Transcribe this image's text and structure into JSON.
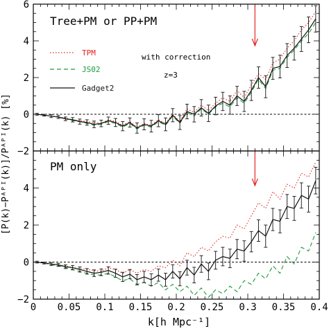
{
  "figure": {
    "xlabel": "k[h Mpc⁻¹]",
    "ylabel": "[P(k)−Pᴬᴾᴵ(k)]/Pᴬᴾᴵ(k) [%]",
    "xticks": [
      "0",
      "0.05",
      "0.1",
      "0.15",
      "0.2",
      "0.25",
      "0.3",
      "0.35",
      "0.4"
    ]
  },
  "chart_data": [
    {
      "type": "line",
      "title": "Tree+PM or PP+PM",
      "annotations": [
        "with correction",
        "z=3"
      ],
      "xlim": [
        0,
        0.4
      ],
      "ylim": [
        -2,
        6
      ],
      "yticks": [
        "−2",
        "0",
        "2",
        "4",
        "6"
      ],
      "reference_line_y": 0,
      "marker_arrow_x": 0.31,
      "legend_position": "left",
      "x": [
        0.005,
        0.015,
        0.025,
        0.035,
        0.045,
        0.055,
        0.065,
        0.075,
        0.085,
        0.095,
        0.105,
        0.115,
        0.125,
        0.135,
        0.145,
        0.155,
        0.165,
        0.175,
        0.185,
        0.195,
        0.205,
        0.215,
        0.225,
        0.235,
        0.245,
        0.255,
        0.265,
        0.275,
        0.285,
        0.295,
        0.305,
        0.315,
        0.325,
        0.335,
        0.345,
        0.355,
        0.365,
        0.375,
        0.385,
        0.395
      ],
      "series": [
        {
          "name": "TPM",
          "color": "#e0241f",
          "style": "dotted",
          "values": [
            0.0,
            -0.05,
            -0.1,
            -0.15,
            -0.2,
            -0.3,
            -0.35,
            -0.4,
            -0.45,
            -0.5,
            -0.3,
            -0.4,
            -0.6,
            -0.4,
            -0.7,
            -0.5,
            -0.6,
            -0.3,
            -0.5,
            0.0,
            -0.4,
            0.3,
            0.1,
            0.5,
            0.2,
            0.6,
            0.9,
            0.7,
            1.3,
            0.9,
            1.6,
            2.2,
            1.9,
            2.8,
            3.0,
            3.6,
            4.0,
            4.6,
            5.0,
            5.6
          ]
        },
        {
          "name": "JS02",
          "color": "#1a9a3a",
          "style": "dashed",
          "values": [
            0.0,
            -0.05,
            -0.1,
            -0.15,
            -0.25,
            -0.35,
            -0.4,
            -0.5,
            -0.6,
            -0.55,
            -0.4,
            -0.5,
            -0.7,
            -0.5,
            -0.8,
            -0.6,
            -0.7,
            -0.4,
            -0.6,
            -0.1,
            -0.5,
            0.1,
            -0.1,
            0.3,
            0.0,
            0.4,
            0.6,
            0.4,
            0.9,
            0.6,
            1.2,
            1.9,
            1.4,
            2.4,
            2.5,
            3.1,
            3.5,
            4.0,
            4.4,
            5.0
          ]
        },
        {
          "name": "Gadget2",
          "color": "#111111",
          "style": "solid",
          "values": [
            0.0,
            -0.05,
            -0.1,
            -0.15,
            -0.25,
            -0.3,
            -0.4,
            -0.45,
            -0.55,
            -0.5,
            -0.35,
            -0.45,
            -0.65,
            -0.45,
            -0.75,
            -0.55,
            -0.65,
            -0.35,
            -0.55,
            -0.05,
            -0.45,
            0.15,
            0.0,
            0.35,
            0.05,
            0.45,
            0.7,
            0.5,
            1.0,
            0.7,
            1.3,
            2.0,
            1.5,
            2.5,
            2.6,
            3.2,
            3.6,
            4.1,
            4.6,
            5.2
          ],
          "errors": [
            0.05,
            0.05,
            0.08,
            0.08,
            0.1,
            0.12,
            0.14,
            0.15,
            0.18,
            0.18,
            0.2,
            0.22,
            0.25,
            0.25,
            0.28,
            0.3,
            0.32,
            0.33,
            0.35,
            0.36,
            0.38,
            0.4,
            0.42,
            0.45,
            0.45,
            0.48,
            0.5,
            0.5,
            0.52,
            0.55,
            0.55,
            0.58,
            0.6,
            0.6,
            0.62,
            0.65,
            0.65,
            0.68,
            0.7,
            0.72
          ]
        }
      ]
    },
    {
      "type": "line",
      "title": "PM only",
      "xlim": [
        0,
        0.4
      ],
      "ylim": [
        -2,
        6
      ],
      "yticks": [
        "−2",
        "0",
        "2",
        "4"
      ],
      "reference_line_y": 0,
      "marker_arrow_x": 0.31,
      "x": [
        0.005,
        0.015,
        0.025,
        0.035,
        0.045,
        0.055,
        0.065,
        0.075,
        0.085,
        0.095,
        0.105,
        0.115,
        0.125,
        0.135,
        0.145,
        0.155,
        0.165,
        0.175,
        0.185,
        0.195,
        0.205,
        0.215,
        0.225,
        0.235,
        0.245,
        0.255,
        0.265,
        0.275,
        0.285,
        0.295,
        0.305,
        0.315,
        0.325,
        0.335,
        0.345,
        0.355,
        0.365,
        0.375,
        0.385,
        0.395
      ],
      "series": [
        {
          "name": "TPM",
          "color": "#e0241f",
          "style": "dotted",
          "values": [
            0.0,
            -0.05,
            -0.1,
            -0.15,
            -0.2,
            -0.3,
            -0.35,
            -0.4,
            -0.45,
            -0.5,
            -0.3,
            -0.4,
            -0.6,
            -0.4,
            -0.6,
            -0.4,
            -0.5,
            -0.2,
            -0.3,
            0.1,
            -0.2,
            0.5,
            0.3,
            0.8,
            0.6,
            1.1,
            1.4,
            1.3,
            2.0,
            1.8,
            2.5,
            3.2,
            2.9,
            3.8,
            3.4,
            4.2,
            4.0,
            4.8,
            4.6,
            5.4
          ]
        },
        {
          "name": "JS02",
          "color": "#1a9a3a",
          "style": "dashed",
          "values": [
            0.0,
            -0.05,
            -0.15,
            -0.2,
            -0.3,
            -0.4,
            -0.5,
            -0.6,
            -0.7,
            -0.7,
            -0.6,
            -0.8,
            -1.0,
            -0.9,
            -1.2,
            -1.1,
            -1.3,
            -1.1,
            -1.5,
            -1.2,
            -1.6,
            -1.3,
            -1.8,
            -1.4,
            -1.9,
            -1.5,
            -1.7,
            -1.3,
            -1.6,
            -1.0,
            -1.2,
            -0.6,
            -0.9,
            -0.2,
            -0.6,
            0.3,
            -0.1,
            0.8,
            0.6,
            1.6
          ]
        },
        {
          "name": "Gadget2",
          "color": "#111111",
          "style": "solid",
          "values": [
            0.0,
            -0.05,
            -0.1,
            -0.15,
            -0.25,
            -0.3,
            -0.4,
            -0.5,
            -0.6,
            -0.55,
            -0.45,
            -0.6,
            -0.8,
            -0.65,
            -0.95,
            -0.8,
            -0.95,
            -0.7,
            -0.95,
            -0.5,
            -0.9,
            -0.3,
            -0.7,
            -0.1,
            -0.5,
            0.1,
            0.3,
            0.2,
            0.7,
            0.6,
            1.1,
            1.7,
            1.4,
            2.3,
            2.2,
            3.0,
            2.9,
            3.6,
            3.4,
            4.4
          ],
          "errors": [
            0.05,
            0.05,
            0.08,
            0.08,
            0.1,
            0.12,
            0.14,
            0.15,
            0.18,
            0.18,
            0.2,
            0.22,
            0.25,
            0.25,
            0.28,
            0.3,
            0.32,
            0.33,
            0.35,
            0.36,
            0.38,
            0.4,
            0.42,
            0.45,
            0.45,
            0.48,
            0.5,
            0.5,
            0.52,
            0.55,
            0.55,
            0.58,
            0.6,
            0.6,
            0.62,
            0.65,
            0.65,
            0.68,
            0.7,
            0.72
          ]
        }
      ]
    }
  ]
}
